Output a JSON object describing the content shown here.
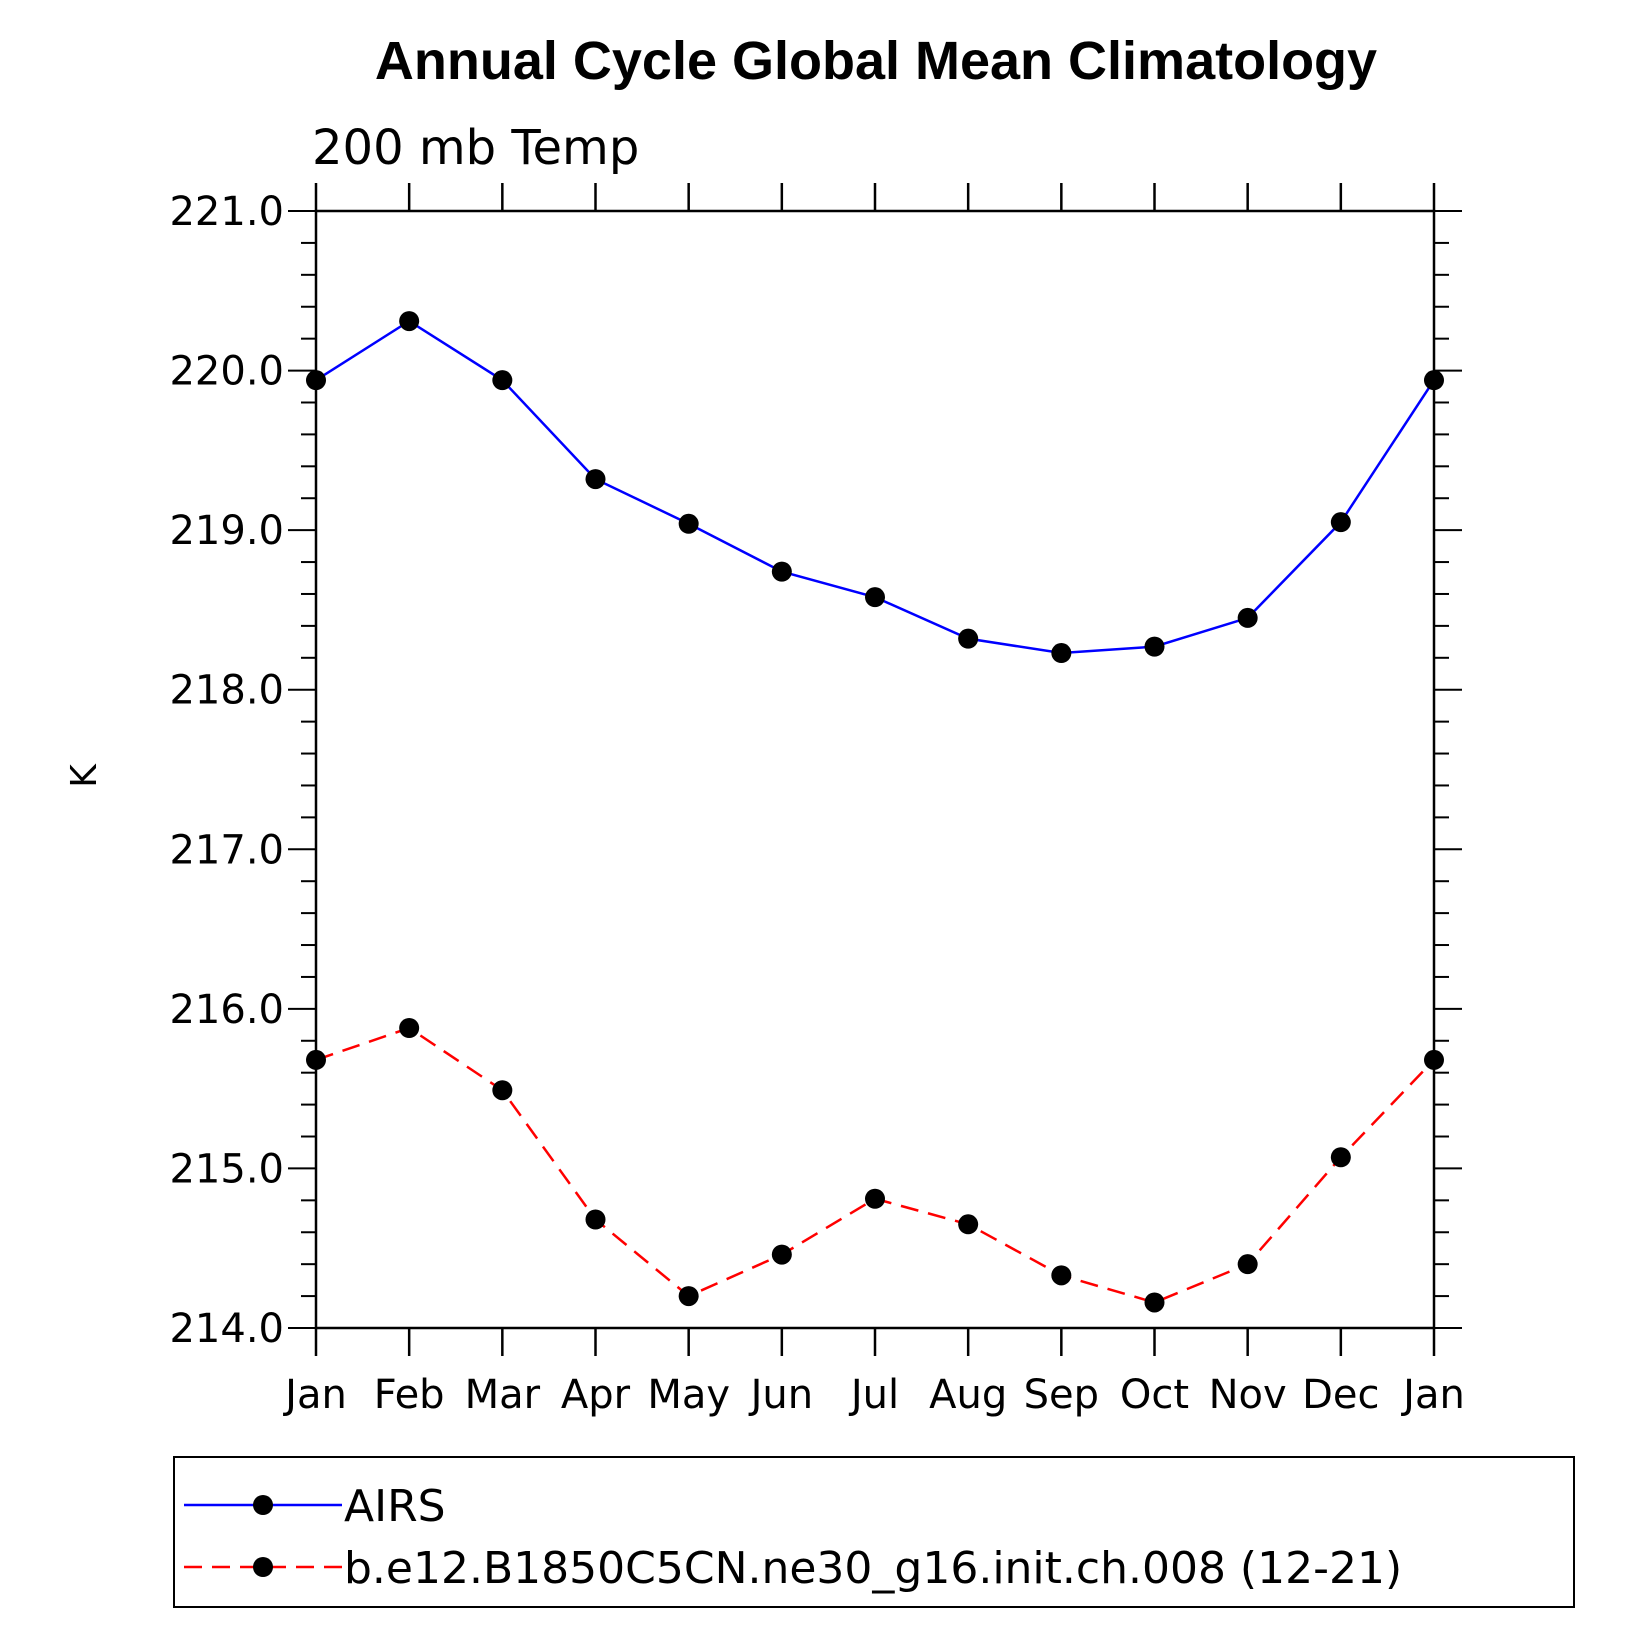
{
  "chart_data": {
    "type": "line",
    "title": "Annual Cycle Global Mean Climatology",
    "subtitle": "200 mb Temp",
    "xlabel": "",
    "ylabel": "K",
    "categories": [
      "Jan",
      "Feb",
      "Mar",
      "Apr",
      "May",
      "Jun",
      "Jul",
      "Aug",
      "Sep",
      "Oct",
      "Nov",
      "Dec",
      "Jan"
    ],
    "ylim": [
      214.0,
      221.0
    ],
    "yticks": [
      "214.0",
      "215.0",
      "216.0",
      "217.0",
      "218.0",
      "219.0",
      "220.0",
      "221.0"
    ],
    "grid": false,
    "legend_placement": "bottom",
    "series": [
      {
        "name": "AIRS",
        "color": "#0000ff",
        "style": "solid",
        "marker": "filled-circle",
        "values": [
          219.94,
          220.31,
          219.94,
          219.32,
          219.04,
          218.74,
          218.58,
          218.32,
          218.23,
          218.27,
          218.45,
          219.05,
          219.94
        ]
      },
      {
        "name": "b.e12.B1850C5CN.ne30_g16.init.ch.008 (12-21)",
        "color": "#ff0000",
        "style": "dashed",
        "marker": "filled-circle",
        "values": [
          215.68,
          215.88,
          215.49,
          214.68,
          214.2,
          214.46,
          214.81,
          214.65,
          214.33,
          214.16,
          214.4,
          215.07,
          215.68
        ]
      }
    ]
  }
}
